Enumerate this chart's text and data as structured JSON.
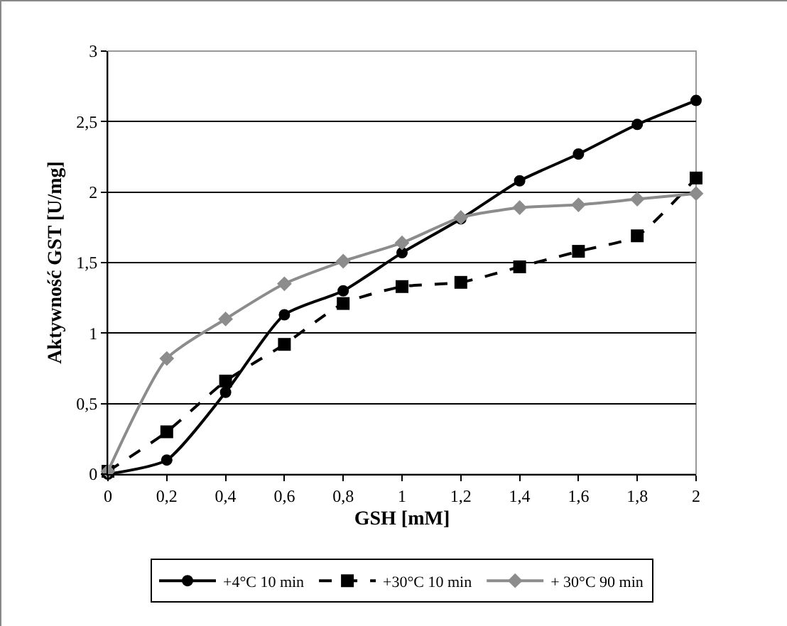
{
  "chart_data": {
    "type": "line",
    "xlabel": "GSH [mM]",
    "ylabel": "Aktywność GST [U/mg]",
    "x": [
      0,
      0.2,
      0.4,
      0.6,
      0.8,
      1,
      1.2,
      1.4,
      1.6,
      1.8,
      2
    ],
    "series": [
      {
        "name": "+4°C 10 min",
        "color": "#000000",
        "marker": "circle",
        "line_style": "solid",
        "values": [
          0,
          0.1,
          0.58,
          1.13,
          1.3,
          1.57,
          1.81,
          2.08,
          2.27,
          2.48,
          2.65
        ]
      },
      {
        "name": "+30°C 10 min",
        "color": "#000000",
        "marker": "square",
        "line_style": "dashed",
        "values": [
          0.02,
          0.3,
          0.66,
          0.92,
          1.21,
          1.33,
          1.36,
          1.47,
          1.58,
          1.69,
          2.1
        ]
      },
      {
        "name": "+ 30°C 90 min",
        "color": "#8c8c8c",
        "marker": "diamond",
        "line_style": "solid",
        "values": [
          0.02,
          0.82,
          1.1,
          1.35,
          1.51,
          1.64,
          1.82,
          1.89,
          1.91,
          1.95,
          1.99
        ]
      }
    ],
    "xlim": [
      0,
      2
    ],
    "xticks": [
      {
        "value": 0,
        "label": "0"
      },
      {
        "value": 0.2,
        "label": "0,2"
      },
      {
        "value": 0.4,
        "label": "0,4"
      },
      {
        "value": 0.6,
        "label": "0,6"
      },
      {
        "value": 0.8,
        "label": "0,8"
      },
      {
        "value": 1,
        "label": "1"
      },
      {
        "value": 1.2,
        "label": "1,2"
      },
      {
        "value": 1.4,
        "label": "1,4"
      },
      {
        "value": 1.6,
        "label": "1,6"
      },
      {
        "value": 1.8,
        "label": "1,8"
      },
      {
        "value": 2,
        "label": "2"
      }
    ],
    "ylim": [
      0,
      3
    ],
    "yticks": [
      {
        "value": 0,
        "label": "0"
      },
      {
        "value": 0.5,
        "label": "0,5"
      },
      {
        "value": 1,
        "label": "1"
      },
      {
        "value": 1.5,
        "label": "1,5"
      },
      {
        "value": 2,
        "label": "2"
      },
      {
        "value": 2.5,
        "label": "2,5"
      },
      {
        "value": 3,
        "label": "3"
      }
    ],
    "grid": "y",
    "legend": "bottom"
  }
}
